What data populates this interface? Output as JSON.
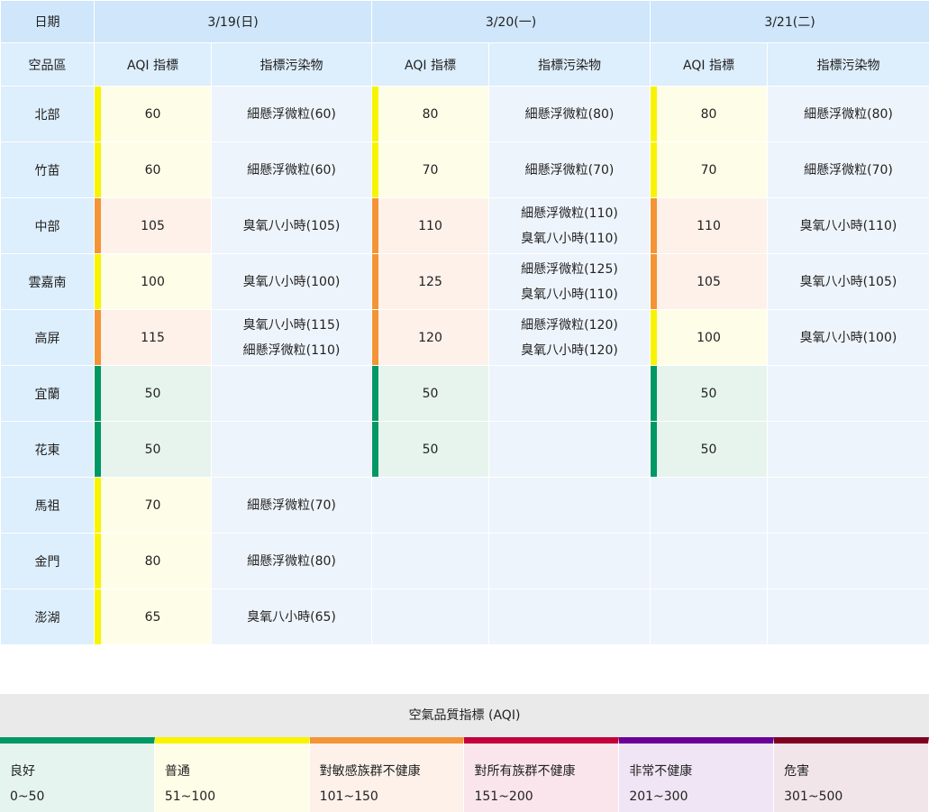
{
  "header": {
    "date_label": "日期",
    "region_label": "空品區",
    "aqi_label": "AQI 指標",
    "pollutant_label": "指標污染物",
    "dates": [
      "3/19(日)",
      "3/20(一)",
      "3/21(二)"
    ]
  },
  "colors": {
    "good": "#009865",
    "moderate": "#f8f400",
    "usg": "#f39436",
    "unhealthy": "#c2003b",
    "very_unhealthy": "#6a0098",
    "hazardous": "#7e0023"
  },
  "rows": [
    {
      "region": "北部",
      "days": [
        {
          "aqi": "60",
          "level": "mod",
          "pollutants": [
            "細懸浮微粒(60)"
          ]
        },
        {
          "aqi": "80",
          "level": "mod",
          "pollutants": [
            "細懸浮微粒(80)"
          ]
        },
        {
          "aqi": "80",
          "level": "mod",
          "pollutants": [
            "細懸浮微粒(80)"
          ]
        }
      ]
    },
    {
      "region": "竹苗",
      "days": [
        {
          "aqi": "60",
          "level": "mod",
          "pollutants": [
            "細懸浮微粒(60)"
          ]
        },
        {
          "aqi": "70",
          "level": "mod",
          "pollutants": [
            "細懸浮微粒(70)"
          ]
        },
        {
          "aqi": "70",
          "level": "mod",
          "pollutants": [
            "細懸浮微粒(70)"
          ]
        }
      ]
    },
    {
      "region": "中部",
      "days": [
        {
          "aqi": "105",
          "level": "usg",
          "pollutants": [
            "臭氧八小時(105)"
          ]
        },
        {
          "aqi": "110",
          "level": "usg",
          "pollutants": [
            "細懸浮微粒(110)",
            "臭氧八小時(110)"
          ]
        },
        {
          "aqi": "110",
          "level": "usg",
          "pollutants": [
            "臭氧八小時(110)"
          ]
        }
      ]
    },
    {
      "region": "雲嘉南",
      "days": [
        {
          "aqi": "100",
          "level": "mod",
          "pollutants": [
            "臭氧八小時(100)"
          ]
        },
        {
          "aqi": "125",
          "level": "usg",
          "pollutants": [
            "細懸浮微粒(125)",
            "臭氧八小時(110)"
          ]
        },
        {
          "aqi": "105",
          "level": "usg",
          "pollutants": [
            "臭氧八小時(105)"
          ]
        }
      ]
    },
    {
      "region": "高屏",
      "days": [
        {
          "aqi": "115",
          "level": "usg",
          "pollutants": [
            "臭氧八小時(115)",
            "細懸浮微粒(110)"
          ]
        },
        {
          "aqi": "120",
          "level": "usg",
          "pollutants": [
            "細懸浮微粒(120)",
            "臭氧八小時(120)"
          ]
        },
        {
          "aqi": "100",
          "level": "mod",
          "pollutants": [
            "臭氧八小時(100)"
          ]
        }
      ]
    },
    {
      "region": "宜蘭",
      "days": [
        {
          "aqi": "50",
          "level": "good",
          "pollutants": []
        },
        {
          "aqi": "50",
          "level": "good",
          "pollutants": []
        },
        {
          "aqi": "50",
          "level": "good",
          "pollutants": []
        }
      ]
    },
    {
      "region": "花東",
      "days": [
        {
          "aqi": "50",
          "level": "good",
          "pollutants": []
        },
        {
          "aqi": "50",
          "level": "good",
          "pollutants": []
        },
        {
          "aqi": "50",
          "level": "good",
          "pollutants": []
        }
      ]
    },
    {
      "region": "馬祖",
      "days": [
        {
          "aqi": "70",
          "level": "mod",
          "pollutants": [
            "細懸浮微粒(70)"
          ]
        },
        null,
        null
      ]
    },
    {
      "region": "金門",
      "days": [
        {
          "aqi": "80",
          "level": "mod",
          "pollutants": [
            "細懸浮微粒(80)"
          ]
        },
        null,
        null
      ]
    },
    {
      "region": "澎湖",
      "days": [
        {
          "aqi": "65",
          "level": "mod",
          "pollutants": [
            "臭氧八小時(65)"
          ]
        },
        null,
        null
      ]
    }
  ],
  "legend": {
    "title": "空氣品質指標 (AQI)",
    "items": [
      {
        "name": "良好",
        "range": "0~50",
        "color": "#009865",
        "bg": "#e5f4ee"
      },
      {
        "name": "普通",
        "range": "51~100",
        "color": "#f8f400",
        "bg": "#fefee8"
      },
      {
        "name": "對敏感族群不健康",
        "range": "101~150",
        "color": "#f39436",
        "bg": "#fdf1ea"
      },
      {
        "name": "對所有族群不健康",
        "range": "151~200",
        "color": "#c2003b",
        "bg": "#f9e5eb"
      },
      {
        "name": "非常不健康",
        "range": "201~300",
        "color": "#6a0098",
        "bg": "#f0e5f4"
      },
      {
        "name": "危害",
        "range": "301~500",
        "color": "#7e0023",
        "bg": "#f2e5e9"
      }
    ]
  }
}
